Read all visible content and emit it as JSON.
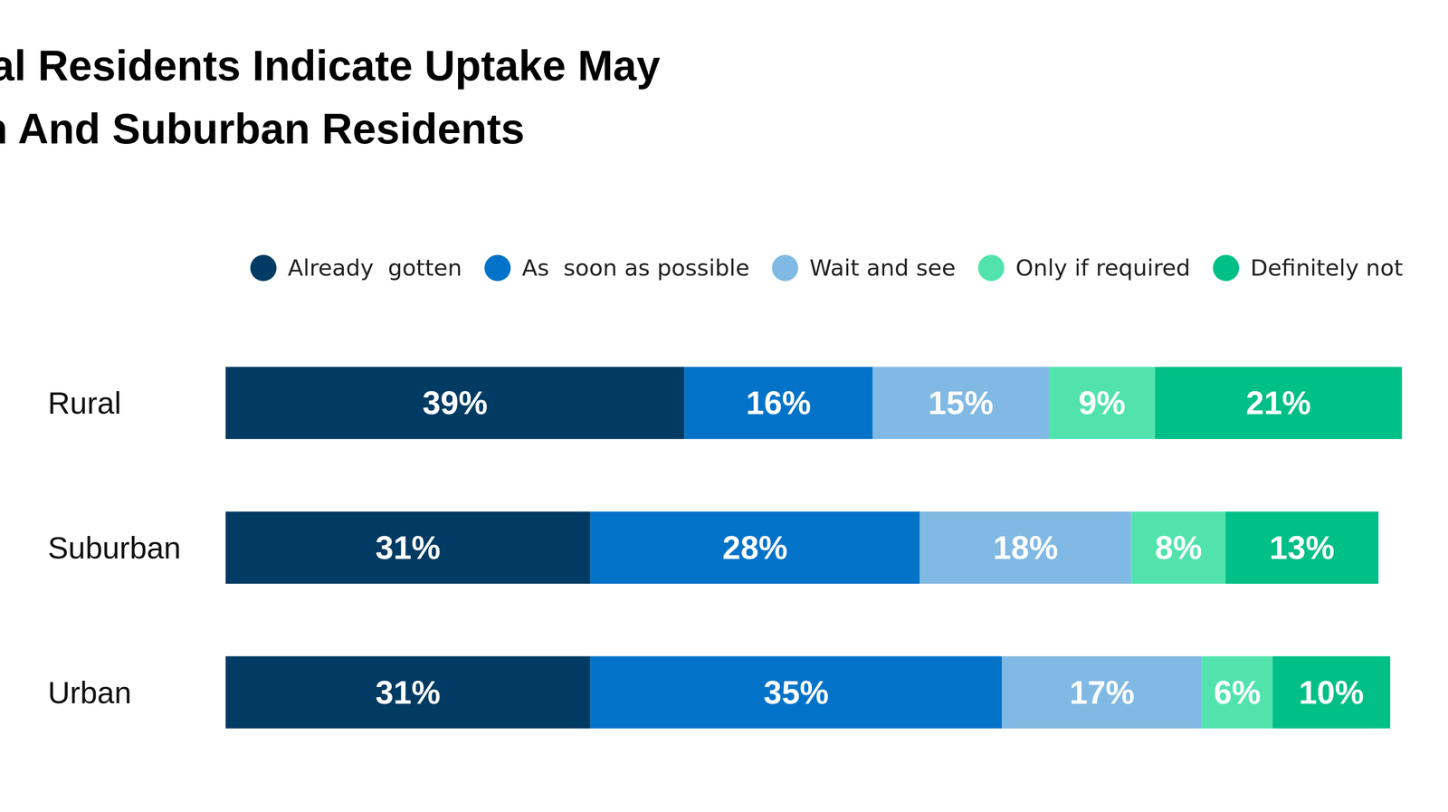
{
  "chart_data": {
    "type": "bar",
    "title": "Vaccine Intentions Among Rural Residents Indicate Uptake May Soon Lag Behind Urban And Suburban Residents",
    "orientation": "horizontal",
    "stacked": true,
    "data_labels": true,
    "tick_labels": "y",
    "grid": false,
    "legend": "top-right",
    "categories": [
      "Rural",
      "Suburban",
      "Urban"
    ],
    "xlim": [
      0,
      100
    ],
    "series": [
      {
        "name": "Already  gotten",
        "color": "#003b63",
        "values": [
          39,
          31,
          31
        ],
        "value_labels": [
          "39%",
          "31%",
          "31%"
        ]
      },
      {
        "name": "As  soon as possible",
        "color": "#0373c9",
        "values": [
          16,
          28,
          35
        ],
        "value_labels": [
          "16%",
          "28%",
          "35%"
        ]
      },
      {
        "name": "Wait and see",
        "color": "#80b9e3",
        "values": [
          15,
          18,
          17
        ],
        "value_labels": [
          "15%",
          "18%",
          "17%"
        ]
      },
      {
        "name": "Only if required",
        "color": "#52e3ad",
        "values": [
          9,
          8,
          6
        ],
        "value_labels": [
          "9%",
          "8%",
          "6%"
        ]
      },
      {
        "name": "Definitely not",
        "color": "#00bf87",
        "values": [
          21,
          13,
          10
        ],
        "value_labels": [
          "21%",
          "13%",
          "10%"
        ]
      }
    ]
  }
}
